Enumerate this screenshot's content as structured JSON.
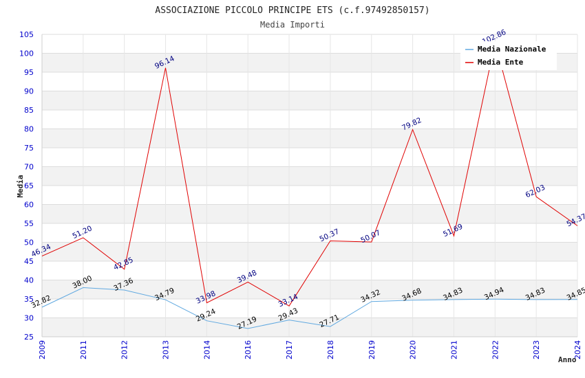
{
  "chart_data": {
    "type": "line",
    "title": "ASSOCIAZIONE PICCOLO PRINCIPE ETS (c.f.97492850157)",
    "subtitle": "Media Importi",
    "xlabel": "Anno",
    "ylabel": "Media",
    "ylim": [
      25,
      105
    ],
    "ytick_step": 5,
    "grid": true,
    "legend_position": "top-right",
    "categories": [
      "2009",
      "2011",
      "2012",
      "2013",
      "2014",
      "2016",
      "2017",
      "2018",
      "2019",
      "2020",
      "2021",
      "2022",
      "2023",
      "2024"
    ],
    "series": [
      {
        "name": "Media Nazionale",
        "color": "#5fa8e0",
        "label_color": "#000000",
        "values": [
          32.82,
          38.0,
          37.36,
          34.79,
          29.24,
          27.19,
          29.43,
          27.71,
          34.32,
          34.68,
          34.83,
          34.94,
          34.83,
          34.85
        ],
        "labels": [
          "32.82",
          "38.00",
          "37.36",
          "34.79",
          "29.24",
          "27.19",
          "29.43",
          "27.71",
          "34.32",
          "34.68",
          "34.83",
          "34.94",
          "34.83",
          "34.85"
        ]
      },
      {
        "name": "Media Ente",
        "color": "#e00000",
        "label_color": "#000080",
        "values": [
          46.34,
          51.2,
          42.85,
          96.14,
          33.98,
          39.48,
          33.14,
          50.37,
          50.07,
          79.82,
          51.69,
          102.86,
          62.03,
          54.37
        ],
        "labels": [
          "46.34",
          "51.20",
          "42.85",
          "96.14",
          "33.98",
          "39.48",
          "33.14",
          "50.37",
          "50.07",
          "79.82",
          "51.69",
          "102.86",
          "62.03",
          "54.37"
        ]
      }
    ]
  }
}
